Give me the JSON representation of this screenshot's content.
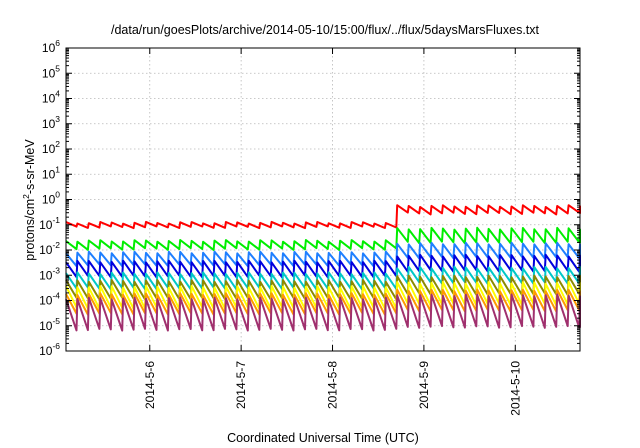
{
  "chart_data": {
    "type": "line",
    "title": "/data/run/goesPlots/archive/2014-05-10/15:00/flux/../flux/5daysMarsFluxes.txt",
    "xlabel": "Coordinated Universal Time (UTC)",
    "ylabel": "protons/cm2-s-sr-MeV",
    "ylabel_parts": [
      "protons/cm",
      "2",
      "-s-sr-MeV"
    ],
    "y_scale": "log",
    "ylim": [
      1e-06,
      1000000.0
    ],
    "xlim": [
      "2014-05-05T02:00",
      "2014-05-10T17:00"
    ],
    "grid": true,
    "legend": "none",
    "x_ticks": [
      "2014-5-6",
      "2014-5-7",
      "2014-5-8",
      "2014-5-9",
      "2014-5-10"
    ],
    "y_ticks": [
      {
        "base": "10",
        "exp": "6"
      },
      {
        "base": "10",
        "exp": "5"
      },
      {
        "base": "10",
        "exp": "4"
      },
      {
        "base": "10",
        "exp": "3"
      },
      {
        "base": "10",
        "exp": "2"
      },
      {
        "base": "10",
        "exp": "1"
      },
      {
        "base": "10",
        "exp": "0"
      },
      {
        "base": "10",
        "exp": "-1"
      },
      {
        "base": "10",
        "exp": "-2"
      },
      {
        "base": "10",
        "exp": "-3"
      },
      {
        "base": "10",
        "exp": "-4"
      },
      {
        "base": "10",
        "exp": "-5"
      },
      {
        "base": "10",
        "exp": "-6"
      }
    ],
    "sawtooth_period_hours": 3,
    "event_time": "2014-05-08T16:00",
    "series": [
      {
        "color": "#ff0000",
        "peak_before": 0.12,
        "trough_before": 0.08,
        "peak_after": 0.55,
        "trough_after": 0.28
      },
      {
        "color": "#00ee00",
        "peak_before": 0.023,
        "trough_before": 0.011,
        "peak_after": 0.07,
        "trough_after": 0.02
      },
      {
        "color": "#1f7fff",
        "peak_before": 0.008,
        "trough_before": 0.0025,
        "peak_after": 0.018,
        "trough_after": 0.005
      },
      {
        "color": "#0000dd",
        "peak_before": 0.0035,
        "trough_before": 0.0009,
        "peak_after": 0.006,
        "trough_after": 0.0015
      },
      {
        "color": "#00c8c8",
        "peak_before": 0.0012,
        "trough_before": 0.0003,
        "peak_after": 0.002,
        "trough_after": 0.0005
      },
      {
        "color": "#8c8a00",
        "peak_before": 0.0006,
        "trough_before": 0.00012,
        "peak_after": 0.0009,
        "trough_after": 0.00018
      },
      {
        "color": "#ffff00",
        "peak_before": 0.00035,
        "trough_before": 5e-05,
        "peak_after": 0.0005,
        "trough_after": 7e-05
      },
      {
        "color": "#ff9a00",
        "peak_before": 0.00018,
        "trough_before": 3e-05,
        "peak_after": 0.00025,
        "trough_after": 4e-05
      },
      {
        "color": "#a0306e",
        "peak_before": 0.00012,
        "trough_before": 7e-06,
        "peak_after": 0.00016,
        "trough_after": 9e-06
      }
    ]
  }
}
